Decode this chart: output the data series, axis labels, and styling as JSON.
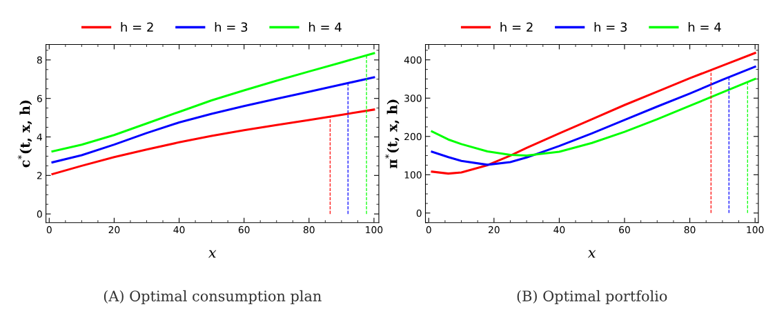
{
  "chart_data": [
    {
      "type": "line",
      "xlabel": "x",
      "ylabel": "c$^{*}$(t, x, h)",
      "annotations": [
        "(A) Optimal consumption plan"
      ],
      "xlim": [
        -1,
        101.5
      ],
      "ylim": [
        -0.45,
        8.8
      ],
      "xticks": [
        0,
        20,
        40,
        60,
        80,
        100
      ],
      "yticks": [
        0,
        2,
        4,
        6,
        8
      ],
      "legend": "top",
      "grid": false,
      "marker": "none",
      "x": [
        1,
        10,
        20,
        30,
        40,
        50,
        60,
        70,
        80,
        90,
        100
      ],
      "series": [
        {
          "name": "h = 2",
          "color": "#ff0000",
          "values": [
            2.07,
            2.5,
            2.95,
            3.35,
            3.72,
            4.05,
            4.35,
            4.62,
            4.88,
            5.15,
            5.42
          ]
        },
        {
          "name": "h = 3",
          "color": "#0000ff",
          "values": [
            2.68,
            3.05,
            3.6,
            4.2,
            4.75,
            5.2,
            5.6,
            5.98,
            6.35,
            6.72,
            7.1
          ]
        },
        {
          "name": "h = 4",
          "color": "#00ff00",
          "values": [
            3.25,
            3.6,
            4.1,
            4.7,
            5.3,
            5.9,
            6.42,
            6.92,
            7.4,
            7.87,
            8.35
          ]
        },
        {
          "color": "#ff0000",
          "line_style": "dashed",
          "x": [
            86.5,
            86.5
          ],
          "values": [
            0,
            5.07
          ]
        },
        {
          "color": "#0000ff",
          "line_style": "dashed",
          "x": [
            92,
            92
          ],
          "values": [
            0,
            6.82
          ]
        },
        {
          "color": "#00ff00",
          "line_style": "dashed",
          "x": [
            97.7,
            97.7
          ],
          "values": [
            0,
            8.22
          ]
        }
      ]
    },
    {
      "type": "line",
      "xlabel": "x",
      "ylabel": "π$^{*}$(t, x, h)",
      "annotations": [
        "(B) Optimal portfolio"
      ],
      "xlim": [
        -1,
        101
      ],
      "ylim": [
        -25,
        440
      ],
      "xticks": [
        0,
        20,
        40,
        60,
        80,
        100
      ],
      "yticks": [
        0,
        100,
        200,
        300,
        400
      ],
      "legend": "top",
      "grid": false,
      "marker": "none",
      "x": [
        1,
        6,
        10,
        18,
        25,
        30,
        40,
        50,
        60,
        70,
        80,
        90,
        100
      ],
      "series": [
        {
          "name": "h = 2",
          "color": "#ff0000",
          "values": [
            108,
            103,
            106,
            125,
            150,
            170,
            208,
            245,
            282,
            317,
            352,
            385,
            418
          ]
        },
        {
          "name": "h = 3",
          "color": "#0000ff",
          "values": [
            160,
            146,
            136,
            126,
            133,
            145,
            175,
            208,
            243,
            278,
            312,
            348,
            382
          ]
        },
        {
          "name": "h = 4",
          "color": "#00ff00",
          "values": [
            213,
            192,
            180,
            161,
            152,
            150,
            160,
            183,
            212,
            245,
            280,
            315,
            350
          ]
        },
        {
          "color": "#ff0000",
          "line_style": "dashed",
          "x": [
            86.5,
            86.5
          ],
          "values": [
            0,
            373
          ]
        },
        {
          "color": "#0000ff",
          "line_style": "dashed",
          "x": [
            92,
            92
          ],
          "values": [
            0,
            355
          ]
        },
        {
          "color": "#00ff00",
          "line_style": "dashed",
          "x": [
            97.7,
            97.7
          ],
          "values": [
            0,
            342
          ]
        }
      ]
    }
  ]
}
